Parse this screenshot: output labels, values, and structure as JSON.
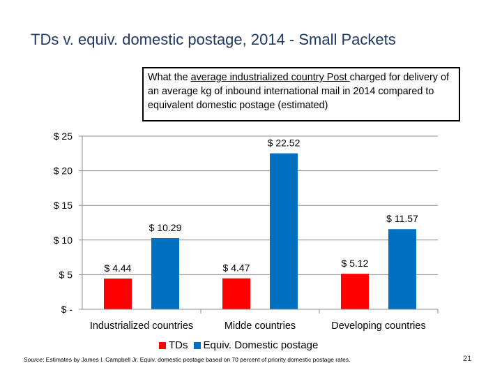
{
  "slide": {
    "title": "TDs v. equiv. domestic postage, 2014 - Small Packets",
    "callout": {
      "part1": "What the ",
      "underlined": "average industrialized country  Post ",
      "part2": "charged for delivery of an average kg of inbound international mail in 2014 compared to equivalent domestic postage (estimated)"
    },
    "source_prefix": "Source",
    "source_text": ": Estimates by James I. Campbell Jr. Equiv. domestic postage based on 70 percent of priority domestic postage rates.",
    "page_number": "21"
  },
  "chart_data": {
    "type": "bar",
    "categories": [
      "Industrialized countries",
      "Midde countries",
      "Developing countries"
    ],
    "series": [
      {
        "name": "TDs",
        "color": "#ff0000",
        "values": [
          4.44,
          4.47,
          5.12
        ],
        "labels": [
          "$ 4.44",
          "$ 4.47",
          "$ 5.12"
        ]
      },
      {
        "name": "Equiv. Domestic postage",
        "color": "#0070c0",
        "values": [
          10.29,
          22.52,
          11.57
        ],
        "labels": [
          "$ 10.29",
          "$ 22.52",
          "$ 11.57"
        ]
      }
    ],
    "yticks": [
      0,
      5,
      10,
      15,
      20,
      25
    ],
    "ytick_labels": [
      "$ -",
      "$ 5",
      "$ 10",
      "$ 15",
      "$ 20",
      "$ 25"
    ],
    "ylim": [
      0,
      25
    ],
    "grid": true,
    "legend": "bottom"
  }
}
